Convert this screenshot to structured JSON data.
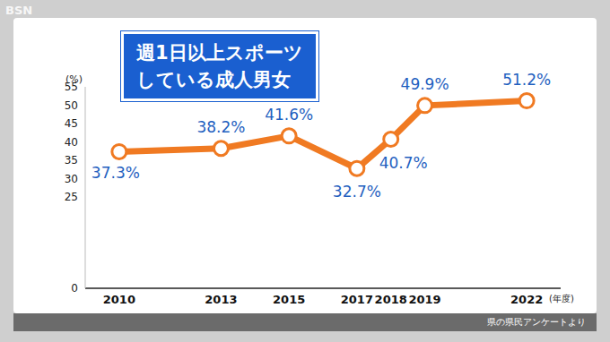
{
  "logo": "BSN",
  "source": "県の県民アンケートより",
  "chart_data": {
    "type": "line",
    "title": "週1日以上スポーツ\nしている成人男女",
    "x": [
      2010,
      2013,
      2015,
      2017,
      2018,
      2019,
      2022
    ],
    "values": [
      37.3,
      38.2,
      41.6,
      32.7,
      40.7,
      49.9,
      51.2
    ],
    "value_labels": [
      "37.3%",
      "38.2%",
      "41.6%",
      "32.7%",
      "40.7%",
      "49.9%",
      "51.2%"
    ],
    "xlim": [
      2009,
      2023
    ],
    "xticks": [
      2010,
      2013,
      2015,
      2017,
      2018,
      2019,
      2022
    ],
    "ylim": [
      0,
      55
    ],
    "yticks": [
      0,
      25,
      30,
      35,
      40,
      45,
      50,
      55
    ],
    "y_label": "(%)",
    "x_label": "(年度)",
    "color": "#f07a22",
    "marker": "circle",
    "data_labels": true,
    "grid": false
  }
}
